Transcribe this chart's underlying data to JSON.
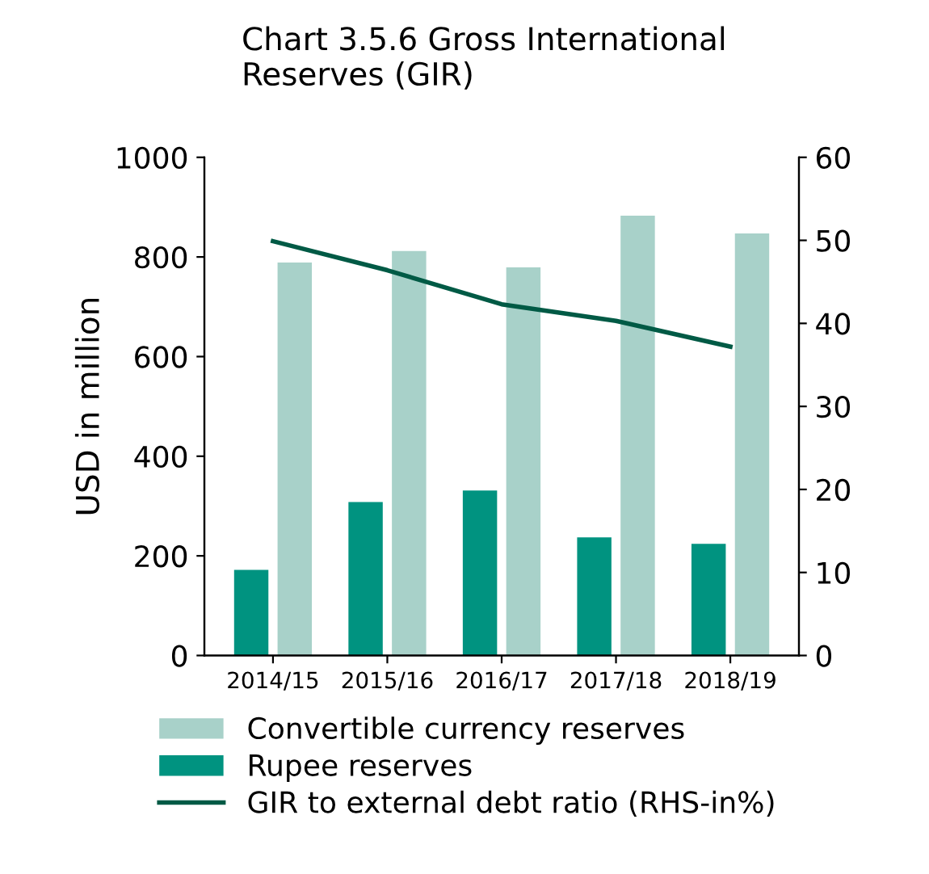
{
  "chart_data": {
    "type": "bar",
    "title": "Chart 3.5.6 Gross International\nReserves (GIR)",
    "ylabel": "USD in million",
    "categories": [
      "2014/15",
      "2015/16",
      "2016/17",
      "2017/18",
      "2018/19"
    ],
    "series": [
      {
        "name": "Convertible currency reserves",
        "color": "#a8d1c9",
        "values": [
          789,
          812,
          779,
          883,
          847
        ]
      },
      {
        "name": "Rupee reserves",
        "color": "#009380",
        "values": [
          172,
          308,
          331,
          237,
          224
        ]
      },
      {
        "name": "GIR to external debt ratio (RHS-in%)",
        "type": "line",
        "axis": "y2",
        "color": "#005a45",
        "values": [
          49.9,
          46.4,
          42.3,
          40.3,
          37.2
        ]
      }
    ],
    "ylim": [
      0,
      1000
    ],
    "yticks": [
      0,
      200,
      400,
      600,
      800,
      1000
    ],
    "y2lim": [
      0,
      60
    ],
    "y2ticks": [
      0,
      10,
      20,
      30,
      40,
      50,
      60
    ],
    "grid": false,
    "legend": "bottom"
  }
}
